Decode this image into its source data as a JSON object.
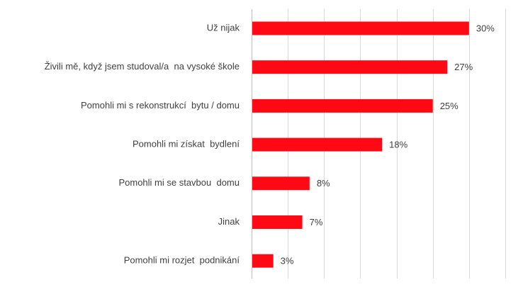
{
  "chart_data": {
    "type": "bar",
    "orientation": "horizontal",
    "categories": [
      "Už nijak",
      "Živili mě, když jsem studoval/a  na vysoké škole",
      "Pomohli mi s rekonstrukcí  bytu / domu",
      "Pomohli mi získat  bydlení",
      "Pomohli mi se stavbou  domu",
      "Jinak",
      "Pomohli mi rozjet  podnikání"
    ],
    "values": [
      30,
      27,
      25,
      18,
      8,
      7,
      3
    ],
    "value_labels": [
      "30%",
      "27%",
      "25%",
      "18%",
      "8%",
      "7%",
      "3%"
    ],
    "xlim": [
      0,
      35
    ],
    "grid": true,
    "legend": "none",
    "bar_color": "#ff0a14"
  }
}
